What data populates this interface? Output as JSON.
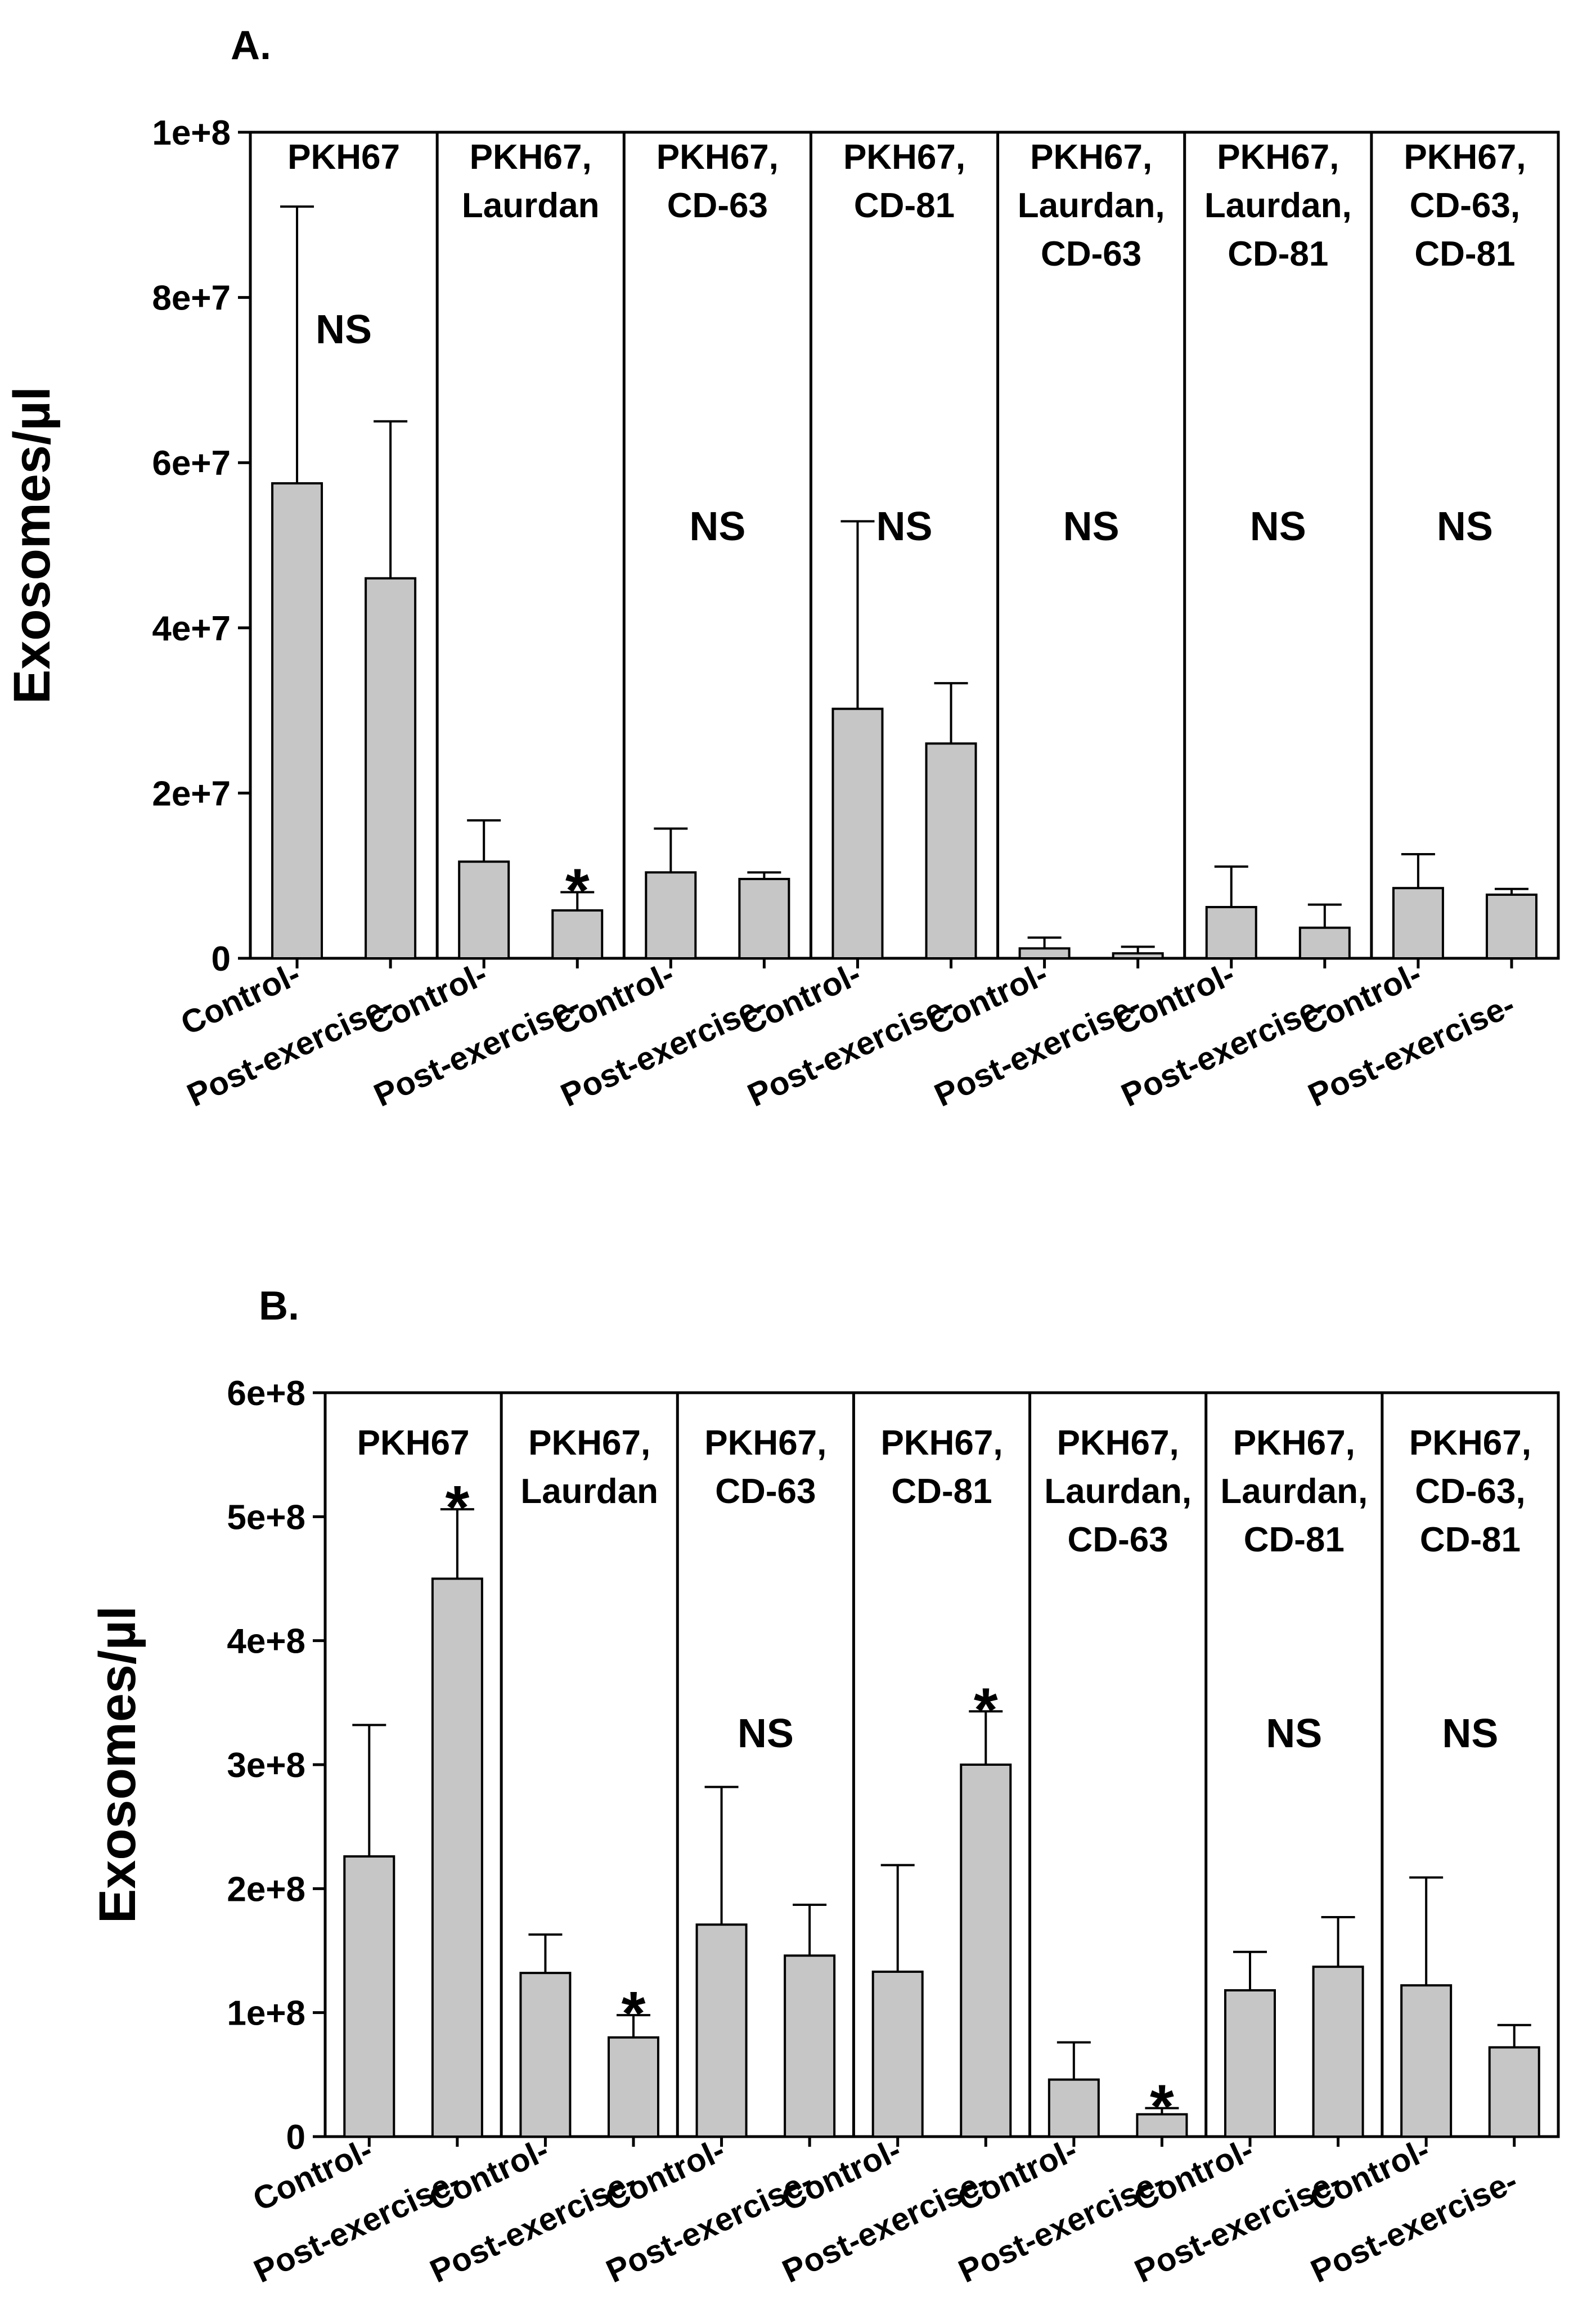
{
  "chart_data": [
    {
      "id": "A",
      "type": "bar",
      "panel_label": "A.",
      "ylabel": "Exosomes/µl",
      "ylim": [
        0,
        100000000
      ],
      "yticks": [
        0,
        20000000,
        40000000,
        60000000,
        80000000,
        100000000
      ],
      "ytick_labels": [
        "0",
        "2e+7",
        "4e+7",
        "6e+7",
        "8e+7",
        "1e+8"
      ],
      "categories": [
        "Control-",
        "Post-exercise-"
      ],
      "groups": [
        {
          "label": [
            "PKH67"
          ],
          "values": [
            57500000,
            46000000
          ],
          "errors": [
            33500000,
            19000000
          ],
          "annotation": "NS",
          "annot_pos": "upper"
        },
        {
          "label": [
            "PKH67,",
            "Laurdan"
          ],
          "values": [
            11700000,
            5800000
          ],
          "errors": [
            5000000,
            2200000
          ],
          "annotation": "*",
          "annot_pos": "post"
        },
        {
          "label": [
            "PKH67,",
            "CD-63"
          ],
          "values": [
            10400000,
            9600000
          ],
          "errors": [
            5300000,
            800000
          ],
          "annotation": "NS",
          "annot_pos": "middle"
        },
        {
          "label": [
            "PKH67,",
            "CD-81"
          ],
          "values": [
            30200000,
            26000000
          ],
          "errors": [
            22700000,
            7300000
          ],
          "annotation": "NS",
          "annot_pos": "middle"
        },
        {
          "label": [
            "PKH67,",
            "Laurdan,",
            "CD-63"
          ],
          "values": [
            1200000,
            600000
          ],
          "errors": [
            1300000,
            800000
          ],
          "annotation": "NS",
          "annot_pos": "middle"
        },
        {
          "label": [
            "PKH67,",
            "Laurdan,",
            "CD-81"
          ],
          "values": [
            6200000,
            3700000
          ],
          "errors": [
            4900000,
            2800000
          ],
          "annotation": "NS",
          "annot_pos": "middle"
        },
        {
          "label": [
            "PKH67,",
            "CD-63,",
            "CD-81"
          ],
          "values": [
            8500000,
            7700000
          ],
          "errors": [
            4100000,
            700000
          ],
          "annotation": "NS",
          "annot_pos": "middle"
        }
      ]
    },
    {
      "id": "B",
      "type": "bar",
      "panel_label": "B.",
      "ylabel": "Exosomes/µl",
      "ylim": [
        0,
        600000000
      ],
      "yticks": [
        0,
        100000000,
        200000000,
        300000000,
        400000000,
        500000000,
        600000000
      ],
      "ytick_labels": [
        "0",
        "1e+8",
        "2e+8",
        "3e+8",
        "4e+8",
        "5e+8",
        "6e+8"
      ],
      "categories": [
        "Control-",
        "Post-exercise-"
      ],
      "groups": [
        {
          "label": [
            "PKH67"
          ],
          "values": [
            226000000,
            450000000
          ],
          "errors": [
            106000000,
            56000000
          ],
          "annotation": "*",
          "annot_pos": "post"
        },
        {
          "label": [
            "PKH67,",
            "Laurdan"
          ],
          "values": [
            132000000,
            80000000
          ],
          "errors": [
            31000000,
            18000000
          ],
          "annotation": "*",
          "annot_pos": "post"
        },
        {
          "label": [
            "PKH67,",
            "CD-63"
          ],
          "values": [
            171000000,
            146000000
          ],
          "errors": [
            111000000,
            41000000
          ],
          "annotation": "NS",
          "annot_pos": "middle"
        },
        {
          "label": [
            "PKH67,",
            "CD-81"
          ],
          "values": [
            133000000,
            300000000
          ],
          "errors": [
            86000000,
            43000000
          ],
          "annotation": "*",
          "annot_pos": "post"
        },
        {
          "label": [
            "PKH67,",
            "Laurdan,",
            "CD-63"
          ],
          "values": [
            46000000,
            18000000
          ],
          "errors": [
            30000000,
            5000000
          ],
          "annotation": "*",
          "annot_pos": "post"
        },
        {
          "label": [
            "PKH67,",
            "Laurdan,",
            "CD-81"
          ],
          "values": [
            118000000,
            137000000
          ],
          "errors": [
            31000000,
            40000000
          ],
          "annotation": "NS",
          "annot_pos": "middle"
        },
        {
          "label": [
            "PKH67,",
            "CD-63,",
            "CD-81"
          ],
          "values": [
            122000000,
            72000000
          ],
          "errors": [
            87000000,
            18000000
          ],
          "annotation": "NS",
          "annot_pos": "middle"
        }
      ]
    }
  ]
}
